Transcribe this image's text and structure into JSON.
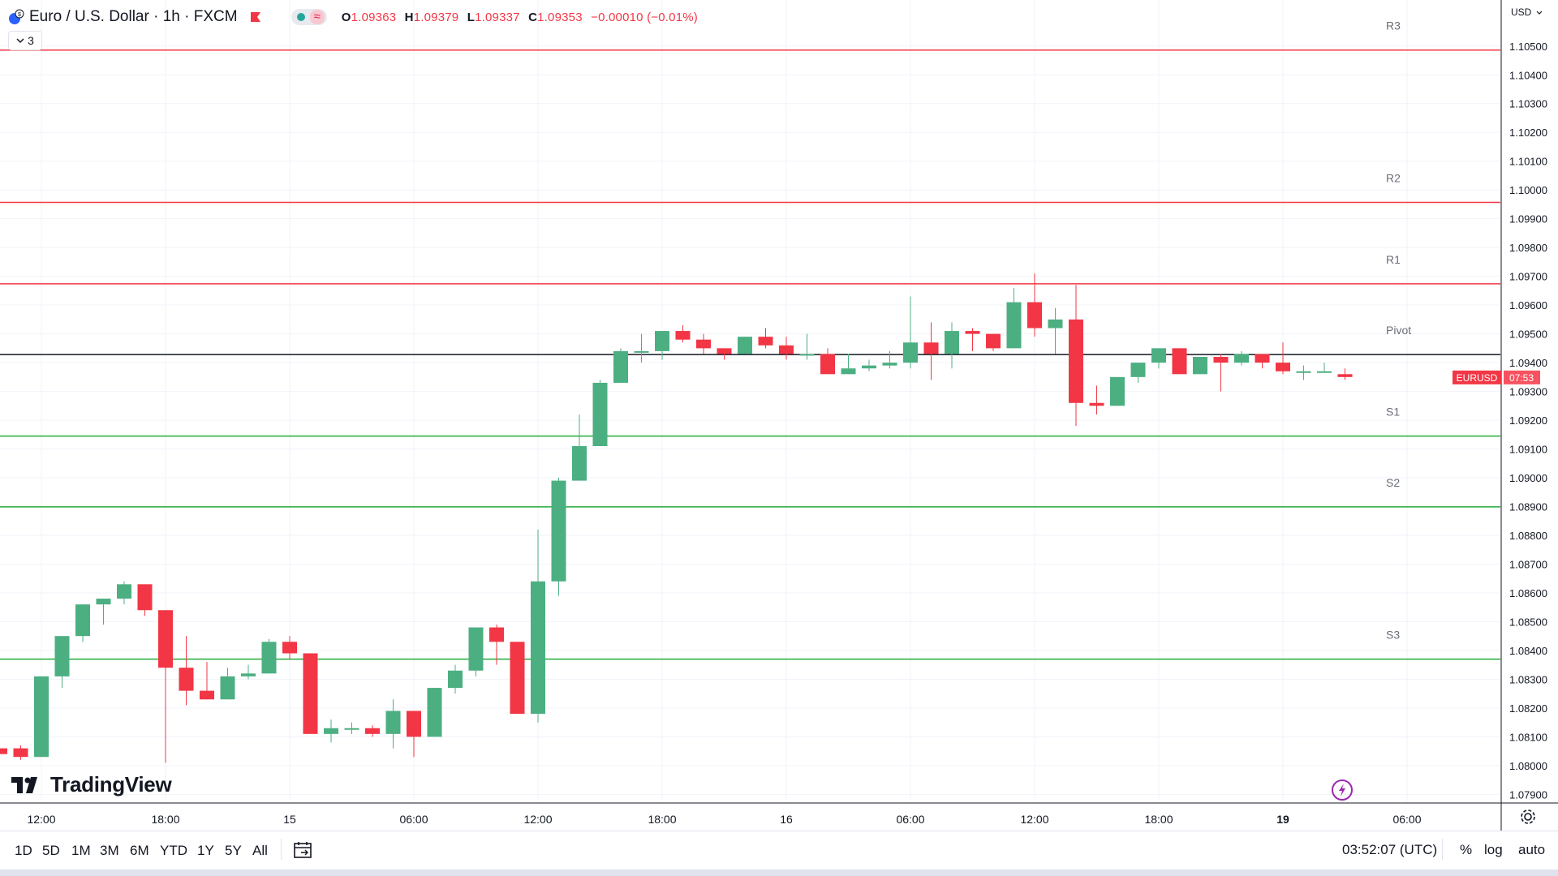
{
  "header": {
    "title": "Euro / U.S. Dollar · 1h · FXCM",
    "ohlc": {
      "o_label": "O",
      "o": "1.09363",
      "h_label": "H",
      "h": "1.09379",
      "l_label": "L",
      "l": "1.09337",
      "c_label": "C",
      "c": "1.09353",
      "change": "−0.00010 (−0.01%)"
    },
    "collapse_count": "3",
    "pill_wave": "≈"
  },
  "currency_label": "USD",
  "logo_text": "TradingView",
  "toolbar": {
    "ranges": [
      "1D",
      "5D",
      "1M",
      "3M",
      "6M",
      "YTD",
      "1Y",
      "5Y",
      "All"
    ],
    "clock": "03:52:07 (UTC)",
    "percent_label": "%",
    "log_label": "log",
    "auto_label": "auto"
  },
  "colors": {
    "up": "#4caf82",
    "down": "#f23645",
    "resistance": "#f23645",
    "pivot": "#131722",
    "support": "#22ab3a",
    "grid": "#f0f3fa",
    "badge_symbol": "#f23645",
    "badge_time": "#f7525f"
  },
  "icons": [
    "symbol-icon",
    "flag-icon",
    "chevron-down-icon",
    "tradingview-logo-icon",
    "bolt-icon",
    "gear-icon",
    "calendar-icon"
  ],
  "chart_data": {
    "type": "candlestick",
    "title": "Euro / U.S. Dollar · 1h · FXCM",
    "ylim": [
      1.0787,
      1.1066
    ],
    "y_ticks": [
      1.079,
      1.08,
      1.081,
      1.082,
      1.083,
      1.084,
      1.085,
      1.086,
      1.087,
      1.088,
      1.089,
      1.09,
      1.091,
      1.092,
      1.093,
      1.094,
      1.095,
      1.096,
      1.097,
      1.098,
      1.099,
      1.1,
      1.101,
      1.102,
      1.103,
      1.104,
      1.105
    ],
    "y_tick_labels": [
      "1.07900",
      "1.08000",
      "1.08100",
      "1.08200",
      "1.08300",
      "1.08400",
      "1.08500",
      "1.08600",
      "1.08700",
      "1.08800",
      "1.08900",
      "1.09000",
      "1.09100",
      "1.09200",
      "1.09300",
      "1.09400",
      "1.09500",
      "1.09600",
      "1.09700",
      "1.09800",
      "1.09900",
      "1.10000",
      "1.10100",
      "1.10200",
      "1.10300",
      "1.10400",
      "1.10500"
    ],
    "x_tick_labels": [
      {
        "index": 2,
        "label": "12:00"
      },
      {
        "index": 8,
        "label": "18:00"
      },
      {
        "index": 14,
        "label": "15"
      },
      {
        "index": 20,
        "label": "06:00"
      },
      {
        "index": 26,
        "label": "12:00"
      },
      {
        "index": 32,
        "label": "18:00"
      },
      {
        "index": 38,
        "label": "16"
      },
      {
        "index": 44,
        "label": "06:00"
      },
      {
        "index": 50,
        "label": "12:00"
      },
      {
        "index": 56,
        "label": "18:00"
      },
      {
        "index": 62,
        "label": "19",
        "bold": true
      },
      {
        "index": 68,
        "label": "06:00"
      }
    ],
    "candles": [
      [
        1.0806,
        1.0806,
        1.0804,
        1.0804
      ],
      [
        1.0806,
        1.0807,
        1.0802,
        1.0803
      ],
      [
        1.0803,
        1.0831,
        1.0803,
        1.0831
      ],
      [
        1.0831,
        1.0845,
        1.0827,
        1.0845
      ],
      [
        1.0845,
        1.0856,
        1.0843,
        1.0856
      ],
      [
        1.0856,
        1.0858,
        1.0849,
        1.0858
      ],
      [
        1.0858,
        1.0864,
        1.0856,
        1.0863
      ],
      [
        1.0863,
        1.0863,
        1.0852,
        1.0854
      ],
      [
        1.0854,
        1.0854,
        1.0801,
        1.0834
      ],
      [
        1.0834,
        1.0845,
        1.0821,
        1.0826
      ],
      [
        1.0826,
        1.0836,
        1.0823,
        1.0823
      ],
      [
        1.0823,
        1.0834,
        1.0823,
        1.0831
      ],
      [
        1.0831,
        1.0835,
        1.083,
        1.0832
      ],
      [
        1.0832,
        1.0844,
        1.0832,
        1.0843
      ],
      [
        1.0843,
        1.0845,
        1.0837,
        1.0839
      ],
      [
        1.0839,
        1.0839,
        1.0811,
        1.0811
      ],
      [
        1.0811,
        1.0816,
        1.0808,
        1.0813
      ],
      [
        1.0813,
        1.0815,
        1.0811,
        1.0813
      ],
      [
        1.0813,
        1.0814,
        1.081,
        1.0811
      ],
      [
        1.0811,
        1.0823,
        1.0806,
        1.0819
      ],
      [
        1.0819,
        1.0819,
        1.0803,
        1.081
      ],
      [
        1.081,
        1.0827,
        1.081,
        1.0827
      ],
      [
        1.0827,
        1.0835,
        1.0825,
        1.0833
      ],
      [
        1.0833,
        1.0848,
        1.0831,
        1.0848
      ],
      [
        1.0848,
        1.0849,
        1.0835,
        1.0843
      ],
      [
        1.0843,
        1.0843,
        1.0818,
        1.0818
      ],
      [
        1.0818,
        1.0882,
        1.0815,
        1.0864
      ],
      [
        1.0864,
        1.09,
        1.0859,
        1.0899
      ],
      [
        1.0899,
        1.0922,
        1.0899,
        1.0911
      ],
      [
        1.0911,
        1.0934,
        1.0911,
        1.0933
      ],
      [
        1.0933,
        1.0945,
        1.0933,
        1.0944
      ],
      [
        1.0944,
        1.095,
        1.094,
        1.0944
      ],
      [
        1.0944,
        1.0951,
        1.0941,
        1.0951
      ],
      [
        1.0951,
        1.0953,
        1.0947,
        1.0948
      ],
      [
        1.0948,
        1.095,
        1.0943,
        1.0945
      ],
      [
        1.0945,
        1.0945,
        1.0941,
        1.0943
      ],
      [
        1.0943,
        1.0949,
        1.0943,
        1.0949
      ],
      [
        1.0949,
        1.0952,
        1.0945,
        1.0946
      ],
      [
        1.0946,
        1.0949,
        1.0941,
        1.0943
      ],
      [
        1.0943,
        1.095,
        1.0941,
        1.0943
      ],
      [
        1.0943,
        1.0945,
        1.0936,
        1.0936
      ],
      [
        1.0936,
        1.0943,
        1.0936,
        1.0938
      ],
      [
        1.0938,
        1.0941,
        1.0937,
        1.0939
      ],
      [
        1.0939,
        1.0944,
        1.0938,
        1.094
      ],
      [
        1.094,
        1.0963,
        1.0938,
        1.0947
      ],
      [
        1.0947,
        1.0954,
        1.0934,
        1.0943
      ],
      [
        1.0943,
        1.0954,
        1.0938,
        1.0951
      ],
      [
        1.0951,
        1.0952,
        1.0944,
        1.095
      ],
      [
        1.095,
        1.095,
        1.0944,
        1.0945
      ],
      [
        1.0945,
        1.0966,
        1.0945,
        1.0961
      ],
      [
        1.0961,
        1.0971,
        1.0949,
        1.0952
      ],
      [
        1.0952,
        1.0959,
        1.0943,
        1.0955
      ],
      [
        1.0955,
        1.0967,
        1.0918,
        1.0926
      ],
      [
        1.0926,
        1.0932,
        1.0922,
        1.0925
      ],
      [
        1.0925,
        1.0935,
        1.0925,
        1.0935
      ],
      [
        1.0935,
        1.094,
        1.0933,
        1.094
      ],
      [
        1.094,
        1.0945,
        1.0938,
        1.0945
      ],
      [
        1.0945,
        1.0945,
        1.0936,
        1.0936
      ],
      [
        1.0936,
        1.0942,
        1.0936,
        1.0942
      ],
      [
        1.0942,
        1.0943,
        1.093,
        1.094
      ],
      [
        1.094,
        1.0944,
        1.0939,
        1.0943
      ],
      [
        1.0943,
        1.0943,
        1.0938,
        1.094
      ],
      [
        1.094,
        1.0947,
        1.0936,
        1.0937
      ],
      [
        1.0937,
        1.0939,
        1.0934,
        1.0937
      ],
      [
        1.0937,
        1.094,
        1.0937,
        1.0937
      ],
      [
        1.0936,
        1.0938,
        1.0934,
        1.0935
      ]
    ],
    "pivot_levels": [
      {
        "name": "R3",
        "value": 1.10486,
        "kind": "resistance"
      },
      {
        "name": "R2",
        "value": 1.09957,
        "kind": "resistance"
      },
      {
        "name": "R1",
        "value": 1.09674,
        "kind": "resistance"
      },
      {
        "name": "Pivot",
        "value": 1.09428,
        "kind": "pivot"
      },
      {
        "name": "S1",
        "value": 1.09145,
        "kind": "support"
      },
      {
        "name": "S2",
        "value": 1.08899,
        "kind": "support"
      },
      {
        "name": "S3",
        "value": 1.0837,
        "kind": "support"
      }
    ],
    "last_price_badge": {
      "symbol": "EURUSD",
      "countdown": "07:53",
      "value": 1.0935
    },
    "grid": true
  }
}
